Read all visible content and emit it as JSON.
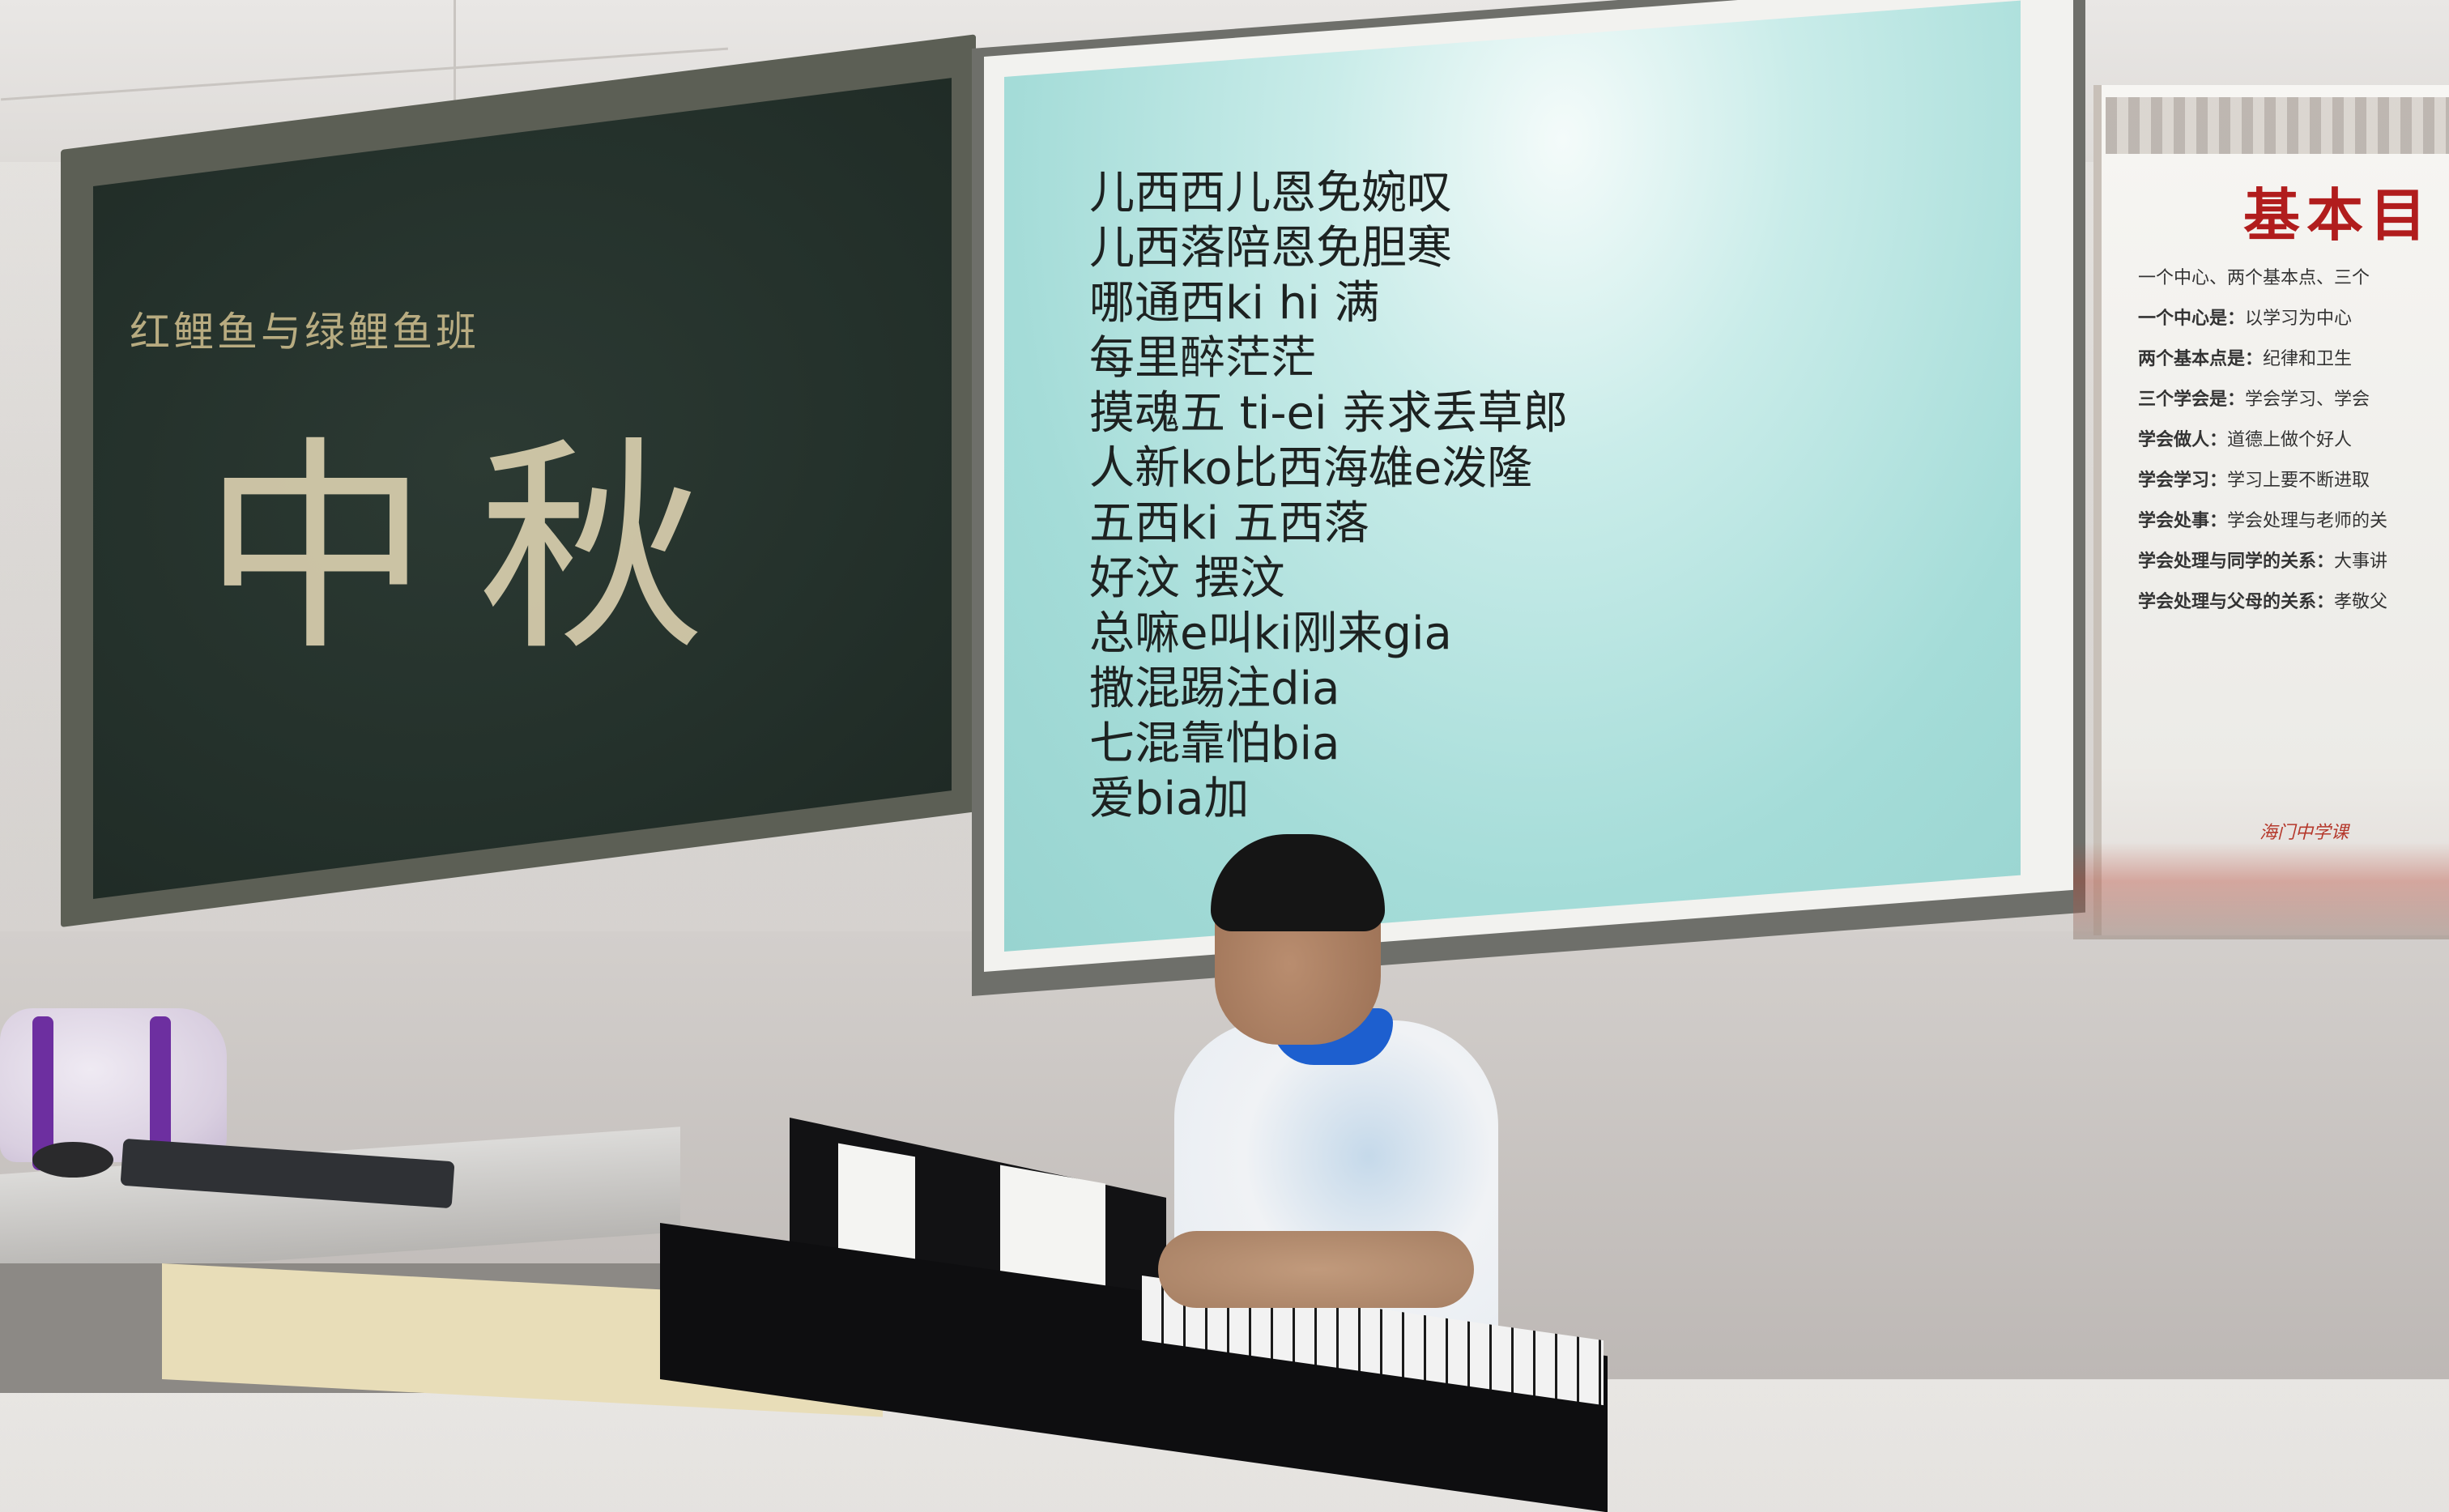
{
  "scene": {
    "chalkboard": {
      "subtitle": "红鲤鱼与绿鲤鱼班",
      "title": "中秋"
    },
    "projection": {
      "lines": [
        "儿西西儿恩免婉叹",
        "儿西落陪恩免胆寒",
        "哪通西ki hi 满",
        "每里醉茫茫",
        "摸魂五 ti-ei 亲求丢草郎",
        "人新ko比西海雄e泼隆",
        "五西ki 五西落",
        "好汶 摆汶",
        "总嘛e叫ki刚来gia",
        "撒混踢注dia",
        "七混靠怕bia",
        "爱bia加"
      ]
    },
    "poster": {
      "title": "基本目",
      "rows": [
        {
          "k": "",
          "v": "一个中心、两个基本点、三个"
        },
        {
          "k": "一个中心是：",
          "v": "以学习为中心"
        },
        {
          "k": "两个基本点是：",
          "v": "纪律和卫生"
        },
        {
          "k": "三个学会是：",
          "v": "学会学习、学会"
        },
        {
          "k": "学会做人：",
          "v": "道德上做个好人"
        },
        {
          "k": "学会学习：",
          "v": "学习上要不断进取"
        },
        {
          "k": "学会处事：",
          "v": "学会处理与老师的关"
        },
        {
          "k": "学会处理与同学的关系：",
          "v": "大事讲"
        },
        {
          "k": "学会处理与父母的关系：",
          "v": "孝敬父"
        }
      ],
      "footer": "海门中学课"
    }
  }
}
